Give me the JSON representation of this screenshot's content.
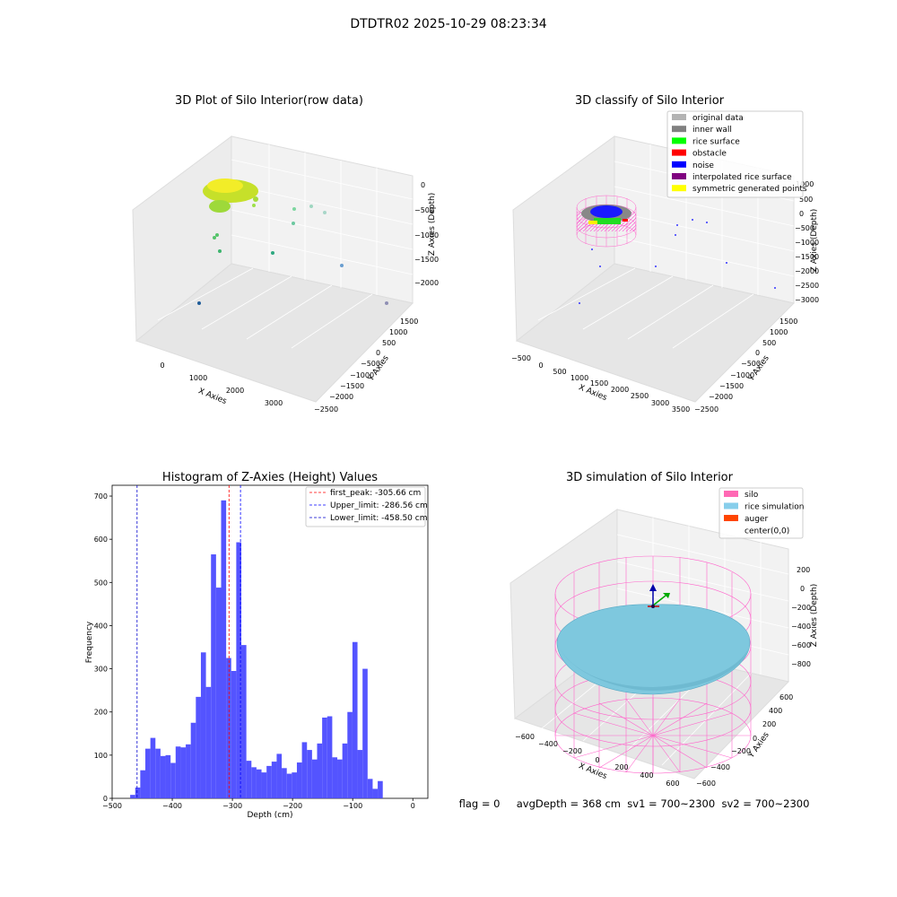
{
  "suptitle": "DTDTR02 2025-10-29 08:23:34",
  "status_line": "flag = 0     avgDepth = 368 cm  sv1 = 700~2300  sv2 = 700~2300",
  "chart_data": [
    {
      "type": "scatter",
      "title": "3D Plot of Silo Interior(row data)",
      "xlabel": "X Axies",
      "ylabel": "Y Axies",
      "zlabel": "Z Axies (Depth)",
      "x_ticks": [
        "0",
        "1000",
        "2000",
        "3000"
      ],
      "y_ticks": [
        "−2500",
        "−2000",
        "−1500",
        "−1000",
        "−500",
        "0",
        "500",
        "1000",
        "1500"
      ],
      "z_ticks": [
        "−2000",
        "−1500",
        "−1000",
        "−500",
        "0"
      ],
      "points": [
        {
          "x": 900,
          "y": 300,
          "z": -250
        },
        {
          "x": 1200,
          "y": 500,
          "z": -300
        },
        {
          "x": 800,
          "y": 0,
          "z": -1000
        },
        {
          "x": 2300,
          "y": 200,
          "z": -700
        },
        {
          "x": 3200,
          "y": -2200,
          "z": -1500
        },
        {
          "x": 500,
          "y": -1700,
          "z": -2000
        },
        {
          "x": 3500,
          "y": -2400,
          "z": -2100
        }
      ]
    },
    {
      "type": "scatter",
      "title": "3D classify of Silo Interior",
      "xlabel": "X Axies",
      "ylabel": "Y Axies",
      "zlabel": "Z Axies (Depth)",
      "x_ticks": [
        "−500",
        "0",
        "500",
        "1000",
        "1500",
        "2000",
        "2500",
        "3000",
        "3500"
      ],
      "y_ticks": [
        "−2500",
        "−2000",
        "−1500",
        "−1000",
        "−500",
        "0",
        "500",
        "1000",
        "1500"
      ],
      "z_ticks": [
        "−3000",
        "−2500",
        "−2000",
        "−1500",
        "−1000",
        "−500",
        "0",
        "500",
        "1000"
      ],
      "legend": [
        {
          "label": "original data",
          "color": "#b3b3b3"
        },
        {
          "label": "inner wall",
          "color": "#808080"
        },
        {
          "label": "rice surface",
          "color": "#00ff00"
        },
        {
          "label": "obstacle",
          "color": "#ff0000"
        },
        {
          "label": "noise",
          "color": "#0000ff"
        },
        {
          "label": "interpolated rice surface",
          "color": "#800080"
        },
        {
          "label": "symmetric generated points",
          "color": "#ffff00"
        }
      ],
      "legend_loc": "upper right"
    },
    {
      "type": "bar",
      "title": "Histogram of Z-Axies (Height) Values",
      "xlabel": "Depth (cm)",
      "ylabel": "Frequency",
      "xlim": [
        -500,
        25
      ],
      "ylim": [
        0,
        725
      ],
      "x_ticks": [
        -500,
        -400,
        -300,
        -200,
        -100,
        0
      ],
      "y_ticks": [
        0,
        100,
        200,
        300,
        400,
        500,
        600,
        700
      ],
      "bin_start": -470,
      "bin_width": 8.4,
      "values": [
        8,
        25,
        65,
        115,
        140,
        115,
        98,
        100,
        82,
        120,
        118,
        125,
        175,
        235,
        338,
        258,
        565,
        488,
        690,
        325,
        295,
        593,
        355,
        87,
        72,
        67,
        60,
        75,
        85,
        103,
        70,
        57,
        60,
        83,
        130,
        112,
        90,
        127,
        187,
        190,
        95,
        90,
        127,
        200,
        362,
        112,
        300,
        45,
        22,
        40
      ],
      "bar_color": "#4b4bff",
      "vlines": [
        {
          "x": -305.66,
          "label": "first_peak: -305.66 cm",
          "color": "#ff0000"
        },
        {
          "x": -286.56,
          "label": "Upper_limit: -286.56 cm",
          "color": "#0000ff"
        },
        {
          "x": -458.5,
          "label": "Lower_limit: -458.50 cm",
          "color": "#0000cc"
        }
      ],
      "legend_loc": "upper right"
    },
    {
      "type": "scatter",
      "title": "3D simulation of Silo Interior",
      "xlabel": "X Axies",
      "ylabel": "Y Axies",
      "zlabel": "Z Axies (Depth)",
      "x_ticks": [
        "−600",
        "−400",
        "−200",
        "0",
        "200",
        "400",
        "600"
      ],
      "y_ticks": [
        "−600",
        "−400",
        "−200",
        "0",
        "200",
        "400",
        "600"
      ],
      "z_ticks": [
        "−800",
        "−600",
        "−400",
        "−200",
        "0",
        "200"
      ],
      "legend": [
        {
          "label": "silo",
          "color": "#ff69b4"
        },
        {
          "label": "rice simulation",
          "color": "#87ceeb"
        },
        {
          "label": "auger",
          "color": "#ff4500"
        },
        {
          "label": "center(0,0)",
          "color": "#ffffff"
        }
      ],
      "legend_loc": "upper right"
    }
  ]
}
